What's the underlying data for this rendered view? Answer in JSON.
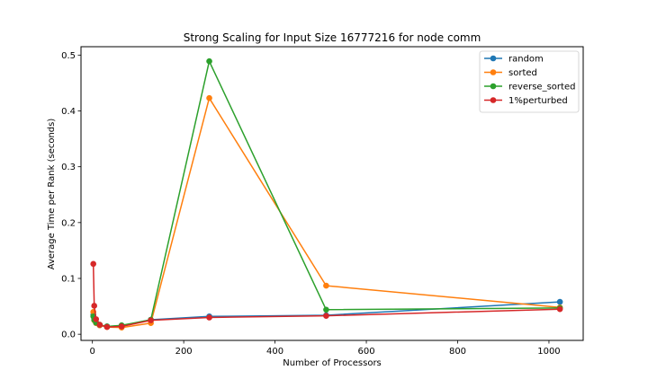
{
  "chart_data": {
    "type": "line",
    "title": "Strong Scaling for Input Size 16777216 for node comm",
    "xlabel": "Number of Processors",
    "ylabel": "Average Time per Rank (seconds)",
    "xlim": [
      -25,
      1075
    ],
    "ylim": [
      -0.011,
      0.515
    ],
    "xticks": [
      0,
      200,
      400,
      600,
      800,
      1000
    ],
    "yticks": [
      0.0,
      0.1,
      0.2,
      0.3,
      0.4,
      0.5
    ],
    "grid": false,
    "legend_position": "top-right",
    "x": [
      2,
      4,
      8,
      16,
      32,
      64,
      128,
      256,
      512,
      1024
    ],
    "series": [
      {
        "name": "random",
        "color": "#1f77b4",
        "values": [
          0.035,
          0.026,
          0.02,
          0.016,
          0.014,
          0.015,
          0.026,
          0.032,
          0.034,
          0.058
        ]
      },
      {
        "name": "sorted",
        "color": "#ff7f0e",
        "values": [
          0.04,
          0.025,
          0.02,
          0.016,
          0.013,
          0.012,
          0.02,
          0.423,
          0.087,
          0.048
        ]
      },
      {
        "name": "reverse_sorted",
        "color": "#2ca02c",
        "values": [
          0.032,
          0.026,
          0.021,
          0.017,
          0.014,
          0.016,
          0.026,
          0.489,
          0.044,
          0.047
        ]
      },
      {
        "name": "1%perturbed",
        "color": "#d62728",
        "values": [
          0.126,
          0.051,
          0.027,
          0.017,
          0.013,
          0.014,
          0.025,
          0.03,
          0.033,
          0.045
        ]
      }
    ]
  }
}
